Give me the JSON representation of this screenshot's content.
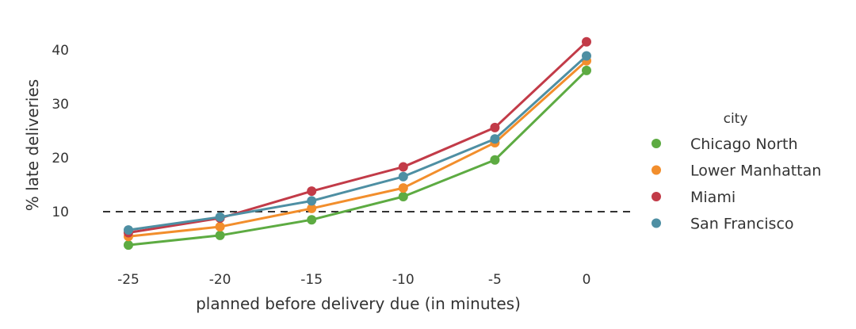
{
  "chart_data": {
    "type": "line",
    "xlabel": "planned before delivery due (in minutes)",
    "ylabel": "% late deliveries",
    "x": [
      "-25",
      "-20",
      "-15",
      "-10",
      "-5",
      "0"
    ],
    "yticks": [
      "10",
      "20",
      "30",
      "40"
    ],
    "ylim": [
      1,
      44
    ],
    "grid": false,
    "reference_line": {
      "y": 10,
      "style": "dashed",
      "color": "#333333"
    },
    "legend": {
      "title": "city",
      "placement": "right"
    },
    "series": [
      {
        "name": "Chicago North",
        "color": "#5dab42",
        "values": [
          3.8,
          5.6,
          8.5,
          12.8,
          19.6,
          36.2
        ]
      },
      {
        "name": "Lower Manhattan",
        "color": "#f28e2c",
        "values": [
          5.4,
          7.2,
          10.6,
          14.4,
          22.8,
          38.0
        ]
      },
      {
        "name": "Miami",
        "color": "#c23b48",
        "values": [
          6.1,
          8.8,
          13.8,
          18.3,
          25.6,
          41.5
        ]
      },
      {
        "name": "San Francisco",
        "color": "#4e8fa3",
        "values": [
          6.6,
          9.0,
          12.0,
          16.5,
          23.5,
          38.9
        ]
      }
    ]
  }
}
